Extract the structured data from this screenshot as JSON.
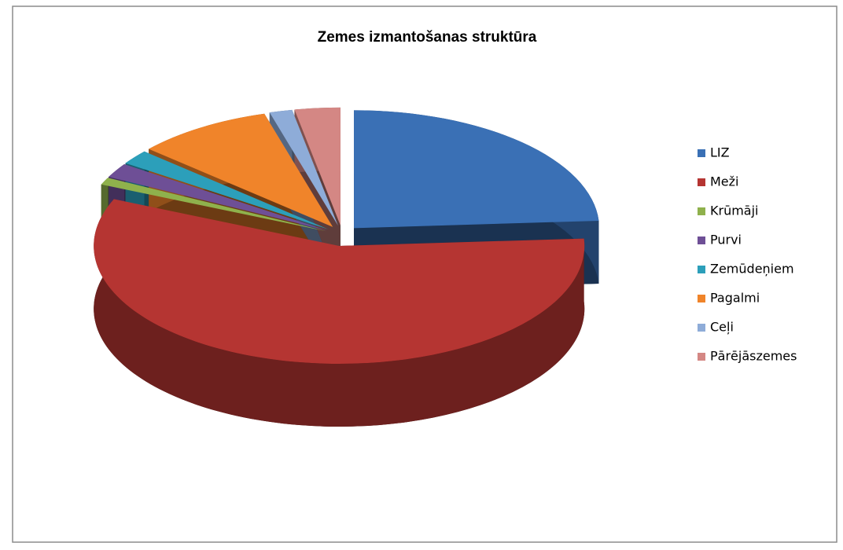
{
  "chart_data": {
    "type": "pie",
    "title": "Zemes izmantošanas struktūra",
    "categories": [
      "LIZ",
      "Meži",
      "Krūmāji",
      "Purvi",
      "Zemūdeņiem",
      "Pagalmi",
      "Ceļi",
      "Pārējāszemes"
    ],
    "values": [
      24,
      57.5,
      1,
      2,
      2,
      9,
      1.5,
      3
    ],
    "colors": [
      "#3a70b5",
      "#b53532",
      "#8fb14c",
      "#6e4f96",
      "#2c9fba",
      "#f0842a",
      "#8eacd8",
      "#d48784"
    ],
    "legend": "right"
  }
}
